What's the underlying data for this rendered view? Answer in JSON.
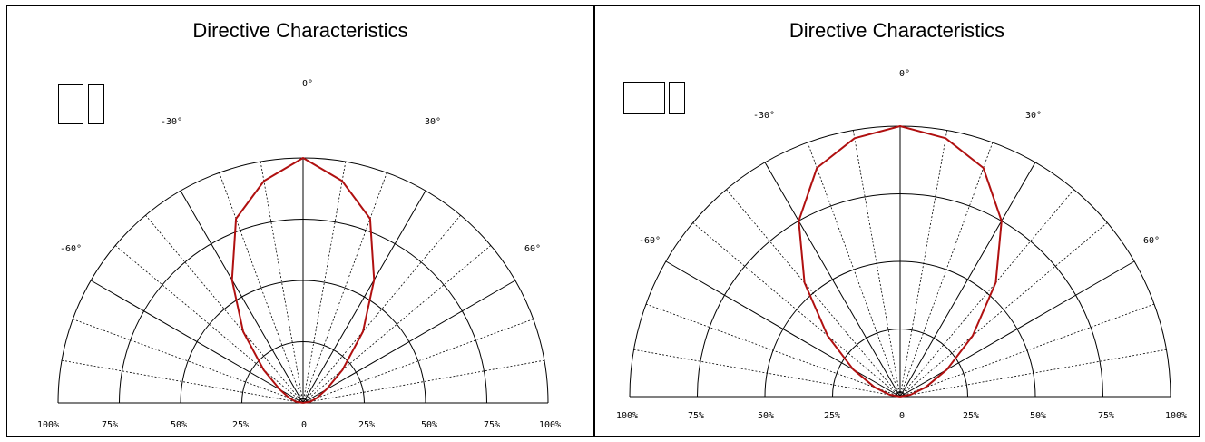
{
  "chart_data": [
    {
      "type": "polar",
      "title": "Directive Characteristics",
      "legend_glyphs": "□□",
      "angle_labels": [
        "-60°",
        "-30°",
        "0°",
        "30°",
        "60°"
      ],
      "radial_tick_labels": [
        "100%",
        "75%",
        "50%",
        "25%",
        "0",
        "25%",
        "50%",
        "75%",
        "100%"
      ],
      "rlim": [
        0,
        100
      ],
      "angle_range_deg": [
        -90,
        90
      ],
      "series": [
        {
          "color": "#b01010",
          "points": [
            {
              "angle": -90,
              "r": 0
            },
            {
              "angle": -80,
              "r": 3
            },
            {
              "angle": -70,
              "r": 6
            },
            {
              "angle": -60,
              "r": 11
            },
            {
              "angle": -50,
              "r": 21
            },
            {
              "angle": -40,
              "r": 38
            },
            {
              "angle": -30,
              "r": 58
            },
            {
              "angle": -20,
              "r": 80
            },
            {
              "angle": -10,
              "r": 92
            },
            {
              "angle": 0,
              "r": 100
            },
            {
              "angle": 10,
              "r": 92
            },
            {
              "angle": 20,
              "r": 80
            },
            {
              "angle": 30,
              "r": 58
            },
            {
              "angle": 40,
              "r": 38
            },
            {
              "angle": 50,
              "r": 21
            },
            {
              "angle": 60,
              "r": 11
            },
            {
              "angle": 70,
              "r": 6
            },
            {
              "angle": 80,
              "r": 3
            },
            {
              "angle": 90,
              "r": 0
            }
          ]
        }
      ]
    },
    {
      "type": "polar",
      "title": "Directive Characteristics",
      "legend_glyphs": "□□",
      "angle_labels": [
        "-60°",
        "-30°",
        "0°",
        "30°",
        "60°"
      ],
      "radial_tick_labels": [
        "100%",
        "75%",
        "50%",
        "25%",
        "0",
        "25%",
        "50%",
        "75%",
        "100%"
      ],
      "rlim": [
        0,
        100
      ],
      "angle_range_deg": [
        -90,
        90
      ],
      "series": [
        {
          "color": "#b01010",
          "points": [
            {
              "angle": -90,
              "r": 0
            },
            {
              "angle": -80,
              "r": 4
            },
            {
              "angle": -70,
              "r": 10
            },
            {
              "angle": -60,
              "r": 20
            },
            {
              "angle": -50,
              "r": 35
            },
            {
              "angle": -40,
              "r": 55
            },
            {
              "angle": -30,
              "r": 75
            },
            {
              "angle": -20,
              "r": 90
            },
            {
              "angle": -10,
              "r": 97
            },
            {
              "angle": 0,
              "r": 100
            },
            {
              "angle": 10,
              "r": 97
            },
            {
              "angle": 20,
              "r": 90
            },
            {
              "angle": 30,
              "r": 75
            },
            {
              "angle": 40,
              "r": 55
            },
            {
              "angle": 50,
              "r": 35
            },
            {
              "angle": 60,
              "r": 20
            },
            {
              "angle": 70,
              "r": 10
            },
            {
              "angle": 80,
              "r": 4
            },
            {
              "angle": 90,
              "r": 0
            }
          ]
        }
      ]
    }
  ]
}
